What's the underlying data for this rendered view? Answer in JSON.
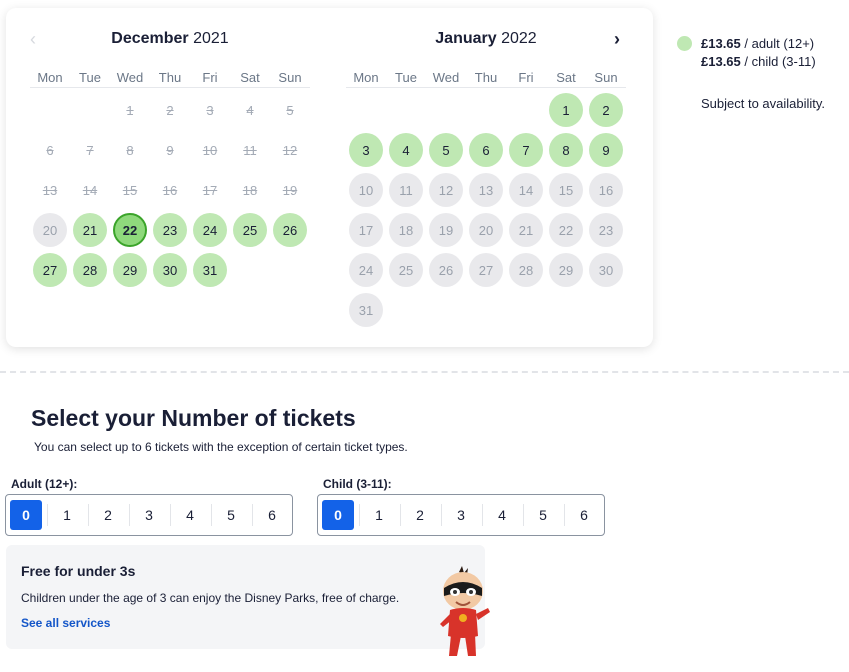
{
  "calendar": {
    "weekdays": [
      "Mon",
      "Tue",
      "Wed",
      "Thu",
      "Fri",
      "Sat",
      "Sun"
    ],
    "months": [
      {
        "name": "December",
        "year": "2021",
        "start_col": 2,
        "days": 31,
        "past": [
          1,
          2,
          3,
          4,
          5,
          6,
          7,
          8,
          9,
          10,
          11,
          12,
          13,
          14,
          15,
          16,
          17,
          18,
          19
        ],
        "unavailable": [
          20
        ],
        "selected": 22
      },
      {
        "name": "January",
        "year": "2022",
        "start_col": 5,
        "days": 31,
        "past": [],
        "available": [
          1,
          2,
          3,
          4,
          5,
          6,
          7,
          8,
          9
        ],
        "selected": null
      }
    ],
    "prev_icon": "chevron-left-icon",
    "next_icon": "chevron-right-icon"
  },
  "legend": {
    "adult_price": "£13.65",
    "adult_label": " / adult (12+)",
    "child_price": "£13.65",
    "child_label": " / child (3-11)",
    "availability_note": "Subject to availability.",
    "available_color": "#bfe8b3"
  },
  "tickets": {
    "title": "Select your Number of tickets",
    "subtitle": "You can select up to 6 tickets with the exception of certain ticket types.",
    "adult": {
      "label": "Adult (12+):",
      "options": [
        "0",
        "1",
        "2",
        "3",
        "4",
        "5",
        "6"
      ],
      "selected": "0"
    },
    "child": {
      "label": "Child (3-11):",
      "options": [
        "0",
        "1",
        "2",
        "3",
        "4",
        "5",
        "6"
      ],
      "selected": "0"
    },
    "accent_color": "#1362e8"
  },
  "info": {
    "title": "Free for under 3s",
    "text": "Children under the age of 3 can enjoy the Disney Parks, free of charge.",
    "link": "See all services"
  }
}
